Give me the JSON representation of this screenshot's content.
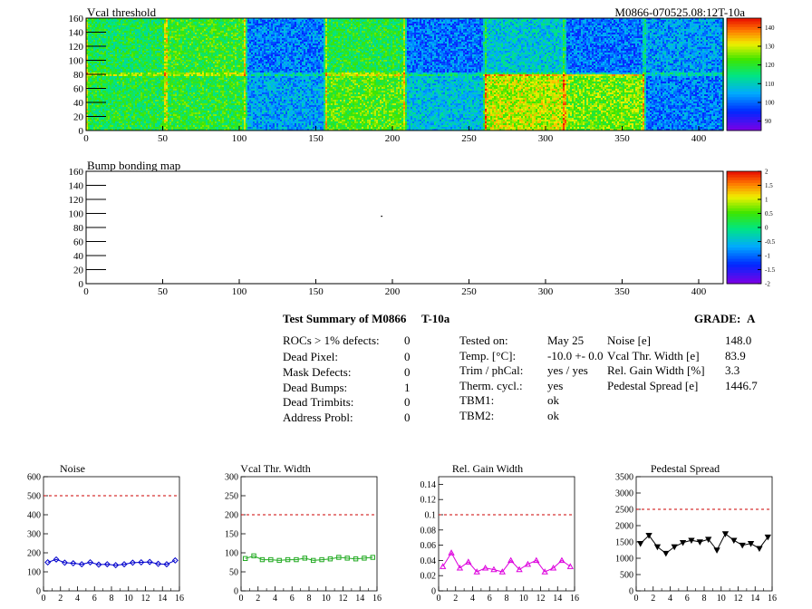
{
  "top_map": {
    "title": "Vcal threshold",
    "id_label": "M0866-070525.08:12T-10a",
    "palette_ticks": [
      "140",
      "130",
      "120",
      "110",
      "100",
      "90"
    ]
  },
  "bump_map": {
    "title": "Bump bonding map",
    "palette_ticks": [
      "2",
      "1.5",
      "1",
      "0.5",
      "0",
      "-0.5",
      "-1",
      "-1.5",
      "-2"
    ]
  },
  "summary": {
    "title": "Test Summary of M0866",
    "test": "T-10a",
    "grade_label": "GRADE:",
    "grade": "A",
    "defects": [
      {
        "label": "ROCs > 1% defects:",
        "value": "0"
      },
      {
        "label": "Dead Pixel:",
        "value": "0"
      },
      {
        "label": "Mask Defects:",
        "value": "0"
      },
      {
        "label": "Dead Bumps:",
        "value": "1"
      },
      {
        "label": "Dead Trimbits:",
        "value": "0"
      },
      {
        "label": "Address Probl:",
        "value": "0"
      }
    ],
    "conditions": [
      {
        "label": "Tested on:",
        "value": "May 25"
      },
      {
        "label": "Temp. [°C]:",
        "value": "-10.0 +- 0.0"
      },
      {
        "label": "Trim / phCal:",
        "value": "yes / yes"
      },
      {
        "label": "Therm. cycl.:",
        "value": "yes"
      },
      {
        "label": "TBM1:",
        "value": "ok"
      },
      {
        "label": "TBM2:",
        "value": "ok"
      }
    ],
    "results": [
      {
        "label": "Noise [e]",
        "value": "148.0"
      },
      {
        "label": "Vcal Thr. Width [e]",
        "value": "83.9"
      },
      {
        "label": "Rel. Gain Width [%]",
        "value": "3.3"
      },
      {
        "label": "Pedestal Spread [e]",
        "value": "1446.7"
      }
    ]
  },
  "chart_data": [
    {
      "type": "heatmap",
      "title": "Vcal threshold",
      "xlim": [
        0,
        416
      ],
      "ylim": [
        0,
        160
      ],
      "x_ticks": [
        "0",
        "50",
        "100",
        "150",
        "200",
        "250",
        "300",
        "350",
        "400"
      ],
      "y_ticks": [
        "0",
        "20",
        "40",
        "60",
        "80",
        "100",
        "120",
        "140",
        "160"
      ],
      "z_range": [
        85,
        145
      ],
      "roc_columns_x": [
        0,
        52,
        104,
        156,
        208,
        260,
        312,
        364,
        416
      ],
      "roc_mean_threshold_top_row": [
        117,
        120,
        101,
        118,
        100,
        108,
        100,
        103
      ],
      "roc_mean_threshold_bottom_row": [
        118,
        119,
        104,
        122,
        107,
        128,
        124,
        101
      ]
    },
    {
      "type": "heatmap",
      "title": "Bump bonding map",
      "xlim": [
        0,
        416
      ],
      "ylim": [
        0,
        160
      ],
      "x_ticks": [
        "0",
        "50",
        "100",
        "150",
        "200",
        "250",
        "300",
        "350",
        "400"
      ],
      "y_ticks": [
        "0",
        "20",
        "40",
        "60",
        "80",
        "100",
        "120",
        "140",
        "160"
      ],
      "z_range": [
        -2,
        2
      ],
      "dead_bumps": [
        {
          "x": 193,
          "y": 96
        }
      ]
    },
    {
      "type": "line",
      "title": "Noise",
      "color": "#0000cc",
      "marker": "diamond",
      "x": [
        0,
        1,
        2,
        3,
        4,
        5,
        6,
        7,
        8,
        9,
        10,
        11,
        12,
        13,
        14,
        15
      ],
      "values": [
        150,
        165,
        148,
        145,
        140,
        150,
        138,
        140,
        135,
        140,
        148,
        150,
        152,
        142,
        140,
        160
      ],
      "threshold": 500,
      "ylim": [
        0,
        600
      ],
      "x_ticks": [
        "0",
        "2",
        "4",
        "6",
        "8",
        "10",
        "12",
        "14",
        "16"
      ],
      "y_ticks": [
        "0",
        "100",
        "200",
        "300",
        "400",
        "500",
        "600"
      ]
    },
    {
      "type": "line",
      "title": "Vcal Thr. Width",
      "color": "#22aa22",
      "marker": "square",
      "x": [
        0,
        1,
        2,
        3,
        4,
        5,
        6,
        7,
        8,
        9,
        10,
        11,
        12,
        13,
        14,
        15
      ],
      "values": [
        85,
        92,
        82,
        82,
        80,
        82,
        82,
        86,
        80,
        82,
        84,
        88,
        86,
        84,
        86,
        88
      ],
      "threshold": 200,
      "ylim": [
        0,
        300
      ],
      "x_ticks": [
        "0",
        "2",
        "4",
        "6",
        "8",
        "10",
        "12",
        "14",
        "16"
      ],
      "y_ticks": [
        "0",
        "50",
        "100",
        "150",
        "200",
        "250",
        "300"
      ]
    },
    {
      "type": "line",
      "title": "Rel. Gain Width",
      "color": "#dd00dd",
      "marker": "triangle",
      "x": [
        0,
        1,
        2,
        3,
        4,
        5,
        6,
        7,
        8,
        9,
        10,
        11,
        12,
        13,
        14,
        15
      ],
      "values": [
        0.032,
        0.05,
        0.03,
        0.038,
        0.025,
        0.03,
        0.028,
        0.025,
        0.04,
        0.028,
        0.035,
        0.04,
        0.025,
        0.03,
        0.04,
        0.032
      ],
      "threshold": 0.1,
      "ylim": [
        0,
        0.15
      ],
      "x_ticks": [
        "0",
        "2",
        "4",
        "6",
        "8",
        "10",
        "12",
        "14",
        "16"
      ],
      "y_ticks": [
        "0",
        "0.02",
        "0.04",
        "0.06",
        "0.08",
        "0.1",
        "0.12",
        "0.14"
      ]
    },
    {
      "type": "line",
      "title": "Pedestal Spread",
      "color": "#000000",
      "marker": "triangle-down",
      "x": [
        0,
        1,
        2,
        3,
        4,
        5,
        6,
        7,
        8,
        9,
        10,
        11,
        12,
        13,
        14,
        15
      ],
      "values": [
        1450,
        1700,
        1350,
        1150,
        1350,
        1480,
        1550,
        1500,
        1580,
        1250,
        1750,
        1550,
        1400,
        1450,
        1300,
        1650
      ],
      "threshold": 2500,
      "ylim": [
        0,
        3500
      ],
      "x_ticks": [
        "0",
        "2",
        "4",
        "6",
        "8",
        "10",
        "12",
        "14",
        "16"
      ],
      "y_ticks": [
        "0",
        "500",
        "1000",
        "1500",
        "2000",
        "2500",
        "3000",
        "3500"
      ]
    }
  ]
}
